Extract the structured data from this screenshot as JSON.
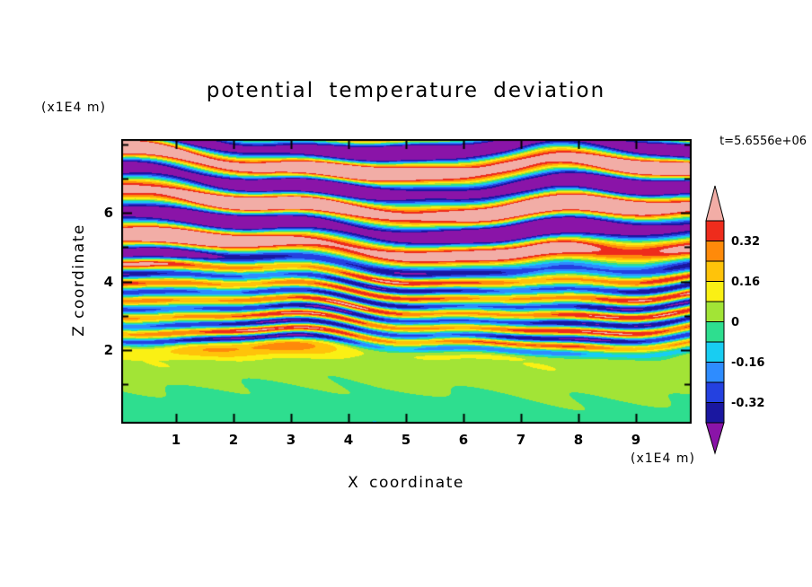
{
  "chart_data": {
    "type": "heatmap",
    "title": "potential temperature deviation",
    "xlabel": "X coordinate",
    "ylabel": "Z coordinate",
    "x_units": "(x1E4 m)",
    "z_units": "(x1E4 m)",
    "time_label": "t=5.6556e+06",
    "x_ticks": [
      1,
      2,
      3,
      4,
      5,
      6,
      7,
      8,
      9
    ],
    "z_ticks": [
      2,
      4,
      6
    ],
    "z_all_ticks": [
      1,
      2,
      3,
      4,
      5,
      6,
      7,
      8
    ],
    "xlim": [
      0,
      10
    ],
    "zlim": [
      0,
      8.1
    ],
    "levels": [
      -0.4,
      -0.32,
      -0.24,
      -0.16,
      -0.08,
      0,
      0.08,
      0.16,
      0.24,
      0.32,
      0.4
    ],
    "colors": [
      "#8A14A8",
      "#1A17A0",
      "#2441E0",
      "#2E8CFF",
      "#18CDF2",
      "#2EDE8F",
      "#A2E436",
      "#FAF014",
      "#FFC30A",
      "#FF8A0A",
      "#EE2C1C",
      "#F2ADA6"
    ],
    "colorbar_labels": [
      {
        "text": "0.32",
        "level": 0.32
      },
      {
        "text": "0.16",
        "level": 0.16
      },
      {
        "text": "0",
        "level": 0
      },
      {
        "text": "-0.16",
        "level": -0.16
      },
      {
        "text": "-0.32",
        "level": -0.32
      }
    ],
    "field_description": "Horizontally stratified wavy temperature-deviation layers: saturated alternating positive (pink) and negative (purple) bands above z~4.8e4 m; fine alternating streaks (red/orange vs blue/navy over green-cyan background) between z~2e4 and 4.8e4 m; weak deviations (spring green with yellow-green patches) below z~2e4 m; layers tilt slightly downward to the right.",
    "render": {
      "shear": 0.05,
      "phase_top": -1.5708,
      "meander1": {
        "amp_base": 0.01,
        "amp_slope": 0.024,
        "fu": 1.15,
        "fv": 0.55,
        "phase": 1.7
      },
      "meander2": {
        "amp": 0.011,
        "fu": 2.6,
        "fv": -0.35,
        "phase": 0.5
      },
      "ripple": {
        "amp": 0.0055,
        "fu": 4.3,
        "fv": 2.0,
        "phase": 0.9
      },
      "mod": {
        "amp": 0.26,
        "fu": 1.8,
        "fv": -2.2,
        "phase": 3.0
      },
      "extra": {
        "amp": 0.017,
        "fu": 6.0,
        "fv": 9.0
      },
      "profile": [
        {
          "v": 0.0,
          "amp": 0.052,
          "wl": 0.55
        },
        {
          "v": 0.22,
          "amp": 0.058,
          "wl": 0.42
        },
        {
          "v": 0.29,
          "amp": 0.335,
          "wl": 0.05
        },
        {
          "v": 0.55,
          "amp": 0.315,
          "wl": 0.06
        },
        {
          "v": 0.64,
          "amp": 0.615,
          "wl": 0.15
        },
        {
          "v": 1.0,
          "amp": 0.645,
          "wl": 0.138
        }
      ]
    }
  }
}
